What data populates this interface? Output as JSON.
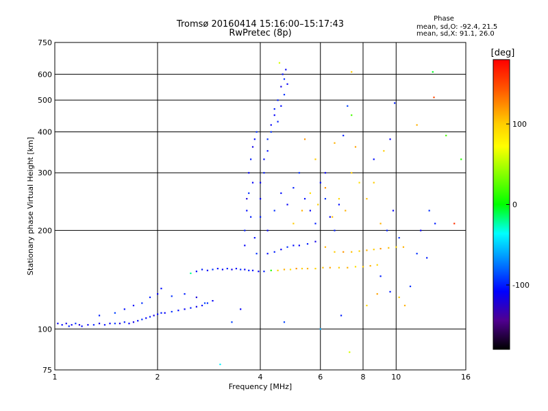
{
  "chart_data": {
    "type": "scatter",
    "title": "Tromsø 20160414 15:16:00–15:17:43",
    "subtitle": "RwPretec (8p)",
    "xlabel": "Frequency [MHz]",
    "ylabel": "Stationary phase Virtual Height [km]",
    "x_scale": "log",
    "y_scale": "log",
    "xlim": [
      1,
      16
    ],
    "ylim": [
      75,
      750
    ],
    "x_ticks": [
      "1",
      "2",
      "4",
      "6",
      "8",
      "10",
      "16"
    ],
    "y_ticks": [
      "75",
      "100",
      "200",
      "300",
      "400",
      "500",
      "600",
      "750"
    ],
    "grid": true,
    "color_scale": {
      "label": "[deg]",
      "ticks": [
        "100",
        "0",
        "-100"
      ],
      "range": [
        -180,
        180
      ]
    },
    "phase_stats": {
      "header": "Phase",
      "o_mode": "mean, sd,O: -92.4, 21.5",
      "x_mode": "mean, sd,X:  91.1, 26.0"
    },
    "points": [
      [
        1.02,
        104,
        -110
      ],
      [
        1.05,
        103,
        -105
      ],
      [
        1.08,
        104,
        -115
      ],
      [
        1.1,
        102,
        -100
      ],
      [
        1.12,
        103,
        -110
      ],
      [
        1.15,
        104,
        -95
      ],
      [
        1.18,
        103,
        -120
      ],
      [
        1.2,
        102,
        -105
      ],
      [
        1.25,
        103,
        -110
      ],
      [
        1.3,
        103,
        -100
      ],
      [
        1.35,
        104,
        -115
      ],
      [
        1.4,
        103,
        -105
      ],
      [
        1.45,
        104,
        -110
      ],
      [
        1.5,
        104,
        -95
      ],
      [
        1.55,
        104,
        -120
      ],
      [
        1.6,
        105,
        -100
      ],
      [
        1.65,
        104,
        -110
      ],
      [
        1.7,
        105,
        -115
      ],
      [
        1.75,
        106,
        -105
      ],
      [
        1.8,
        107,
        -95
      ],
      [
        1.85,
        108,
        -110
      ],
      [
        1.9,
        109,
        -100
      ],
      [
        1.95,
        110,
        -115
      ],
      [
        2.0,
        111,
        -105
      ],
      [
        2.05,
        112,
        -100
      ],
      [
        2.1,
        112,
        -110
      ],
      [
        2.2,
        113,
        -95
      ],
      [
        2.3,
        114,
        -105
      ],
      [
        2.4,
        115,
        -110
      ],
      [
        2.5,
        116,
        -100
      ],
      [
        2.6,
        117,
        -115
      ],
      [
        2.7,
        118,
        -105
      ],
      [
        2.8,
        120,
        -95
      ],
      [
        2.9,
        122,
        -110
      ],
      [
        1.35,
        110,
        -100
      ],
      [
        1.5,
        112,
        -90
      ],
      [
        1.6,
        115,
        -105
      ],
      [
        1.7,
        118,
        -110
      ],
      [
        1.8,
        120,
        -95
      ],
      [
        1.9,
        125,
        -100
      ],
      [
        2.0,
        128,
        -110
      ],
      [
        2.05,
        133,
        -105
      ],
      [
        2.2,
        126,
        -95
      ],
      [
        2.4,
        128,
        -100
      ],
      [
        2.6,
        125,
        -120
      ],
      [
        2.75,
        120,
        -90
      ],
      [
        2.6,
        150,
        -105
      ],
      [
        2.7,
        152,
        -100
      ],
      [
        2.8,
        151,
        -110
      ],
      [
        2.9,
        152,
        -95
      ],
      [
        3.0,
        153,
        -105
      ],
      [
        3.1,
        152,
        -110
      ],
      [
        3.2,
        153,
        -100
      ],
      [
        3.3,
        152,
        -115
      ],
      [
        3.4,
        153,
        -105
      ],
      [
        3.5,
        152,
        -95
      ],
      [
        3.6,
        152,
        -110
      ],
      [
        3.7,
        151,
        -100
      ],
      [
        3.8,
        151,
        -105
      ],
      [
        3.95,
        150,
        -110
      ],
      [
        4.1,
        150,
        -100
      ],
      [
        4.3,
        151,
        10
      ],
      [
        4.5,
        151,
        100
      ],
      [
        4.7,
        152,
        110
      ],
      [
        4.9,
        152,
        90
      ],
      [
        5.1,
        153,
        120
      ],
      [
        5.3,
        153,
        100
      ],
      [
        5.5,
        153,
        110
      ],
      [
        5.8,
        153,
        95
      ],
      [
        6.1,
        154,
        105
      ],
      [
        6.4,
        154,
        115
      ],
      [
        6.8,
        154,
        100
      ],
      [
        7.2,
        154,
        110
      ],
      [
        7.6,
        155,
        90
      ],
      [
        8.0,
        155,
        100
      ],
      [
        8.4,
        156,
        110
      ],
      [
        8.8,
        157,
        95
      ],
      [
        4.2,
        170,
        -105
      ],
      [
        4.4,
        172,
        -100
      ],
      [
        4.6,
        175,
        -110
      ],
      [
        4.8,
        178,
        -95
      ],
      [
        5.0,
        180,
        -105
      ],
      [
        5.2,
        180,
        -110
      ],
      [
        5.5,
        182,
        -100
      ],
      [
        5.8,
        185,
        -115
      ],
      [
        6.2,
        178,
        110
      ],
      [
        6.6,
        172,
        100
      ],
      [
        7.0,
        172,
        120
      ],
      [
        7.4,
        172,
        105
      ],
      [
        7.8,
        173,
        95
      ],
      [
        8.2,
        174,
        110
      ],
      [
        8.6,
        175,
        100
      ],
      [
        9.0,
        176,
        120
      ],
      [
        9.5,
        177,
        105
      ],
      [
        10.0,
        178,
        95
      ],
      [
        10.5,
        178,
        110
      ],
      [
        3.6,
        180,
        -110
      ],
      [
        3.6,
        200,
        -100
      ],
      [
        3.65,
        230,
        -105
      ],
      [
        3.7,
        260,
        -95
      ],
      [
        3.7,
        300,
        -110
      ],
      [
        3.75,
        330,
        -100
      ],
      [
        3.8,
        360,
        -115
      ],
      [
        3.85,
        380,
        -105
      ],
      [
        3.9,
        400,
        -95
      ],
      [
        3.65,
        250,
        -120
      ],
      [
        3.75,
        220,
        -100
      ],
      [
        3.8,
        280,
        -110
      ],
      [
        3.85,
        190,
        -105
      ],
      [
        3.9,
        170,
        -95
      ],
      [
        4.0,
        250,
        -110
      ],
      [
        4.1,
        300,
        -100
      ],
      [
        4.2,
        350,
        -105
      ],
      [
        4.3,
        400,
        -95
      ],
      [
        4.4,
        450,
        -110
      ],
      [
        4.5,
        500,
        -100
      ],
      [
        4.6,
        550,
        -115
      ],
      [
        4.65,
        600,
        -105
      ],
      [
        4.7,
        580,
        -95
      ],
      [
        4.75,
        620,
        -110
      ],
      [
        4.55,
        650,
        60
      ],
      [
        4.4,
        470,
        -100
      ],
      [
        4.3,
        420,
        -110
      ],
      [
        4.2,
        380,
        -95
      ],
      [
        4.1,
        330,
        -105
      ],
      [
        4.0,
        280,
        -110
      ],
      [
        4.5,
        430,
        -100
      ],
      [
        4.6,
        480,
        -105
      ],
      [
        4.7,
        520,
        -95
      ],
      [
        4.8,
        560,
        -110
      ],
      [
        4.0,
        220,
        -100
      ],
      [
        4.2,
        200,
        -110
      ],
      [
        4.4,
        230,
        -95
      ],
      [
        4.6,
        260,
        -105
      ],
      [
        4.8,
        240,
        -110
      ],
      [
        5.0,
        270,
        -100
      ],
      [
        5.2,
        300,
        -95
      ],
      [
        5.4,
        250,
        -105
      ],
      [
        5.6,
        230,
        -110
      ],
      [
        5.8,
        210,
        -100
      ],
      [
        6.0,
        280,
        -105
      ],
      [
        6.2,
        250,
        -95
      ],
      [
        6.4,
        220,
        -110
      ],
      [
        6.6,
        200,
        -100
      ],
      [
        6.8,
        240,
        -105
      ],
      [
        5.0,
        210,
        100
      ],
      [
        5.3,
        230,
        110
      ],
      [
        5.6,
        260,
        90
      ],
      [
        5.9,
        240,
        100
      ],
      [
        6.2,
        270,
        120
      ],
      [
        6.5,
        220,
        105
      ],
      [
        6.8,
        250,
        95
      ],
      [
        7.1,
        230,
        110
      ],
      [
        7.4,
        300,
        100
      ],
      [
        7.6,
        360,
        115
      ],
      [
        7.8,
        280,
        90
      ],
      [
        7.4,
        610,
        100
      ],
      [
        7.2,
        480,
        -90
      ],
      [
        8.2,
        250,
        105
      ],
      [
        8.6,
        280,
        100
      ],
      [
        9.0,
        210,
        110
      ],
      [
        9.4,
        200,
        -100
      ],
      [
        9.8,
        230,
        -110
      ],
      [
        10.2,
        190,
        -95
      ],
      [
        5.4,
        380,
        120
      ],
      [
        5.8,
        330,
        100
      ],
      [
        6.2,
        300,
        -110
      ],
      [
        6.6,
        370,
        110
      ],
      [
        7.0,
        390,
        -100
      ],
      [
        7.4,
        450,
        20
      ],
      [
        8.6,
        330,
        -105
      ],
      [
        9.2,
        350,
        100
      ],
      [
        9.6,
        380,
        -110
      ],
      [
        9.9,
        490,
        -100
      ],
      [
        11.5,
        420,
        110
      ],
      [
        12.8,
        610,
        -5
      ],
      [
        12.9,
        510,
        150
      ],
      [
        14.0,
        390,
        20
      ],
      [
        15.5,
        330,
        10
      ],
      [
        14.8,
        210,
        160
      ],
      [
        9.6,
        130,
        -100
      ],
      [
        10.2,
        125,
        100
      ],
      [
        10.6,
        118,
        110
      ],
      [
        11.0,
        135,
        -95
      ],
      [
        8.8,
        128,
        115
      ],
      [
        6.9,
        110,
        -100
      ],
      [
        7.3,
        85,
        60
      ],
      [
        6.0,
        100,
        -60
      ],
      [
        3.05,
        78,
        -40
      ],
      [
        3.3,
        105,
        -90
      ],
      [
        2.5,
        148,
        -20
      ],
      [
        3.5,
        115,
        -110
      ],
      [
        4.7,
        105,
        -90
      ],
      [
        8.2,
        118,
        95
      ],
      [
        9.0,
        145,
        -100
      ],
      [
        11.5,
        170,
        -95
      ],
      [
        12.3,
        165,
        -100
      ],
      [
        13.0,
        210,
        -100
      ],
      [
        11.8,
        200,
        -110
      ],
      [
        12.5,
        230,
        -95
      ]
    ]
  }
}
